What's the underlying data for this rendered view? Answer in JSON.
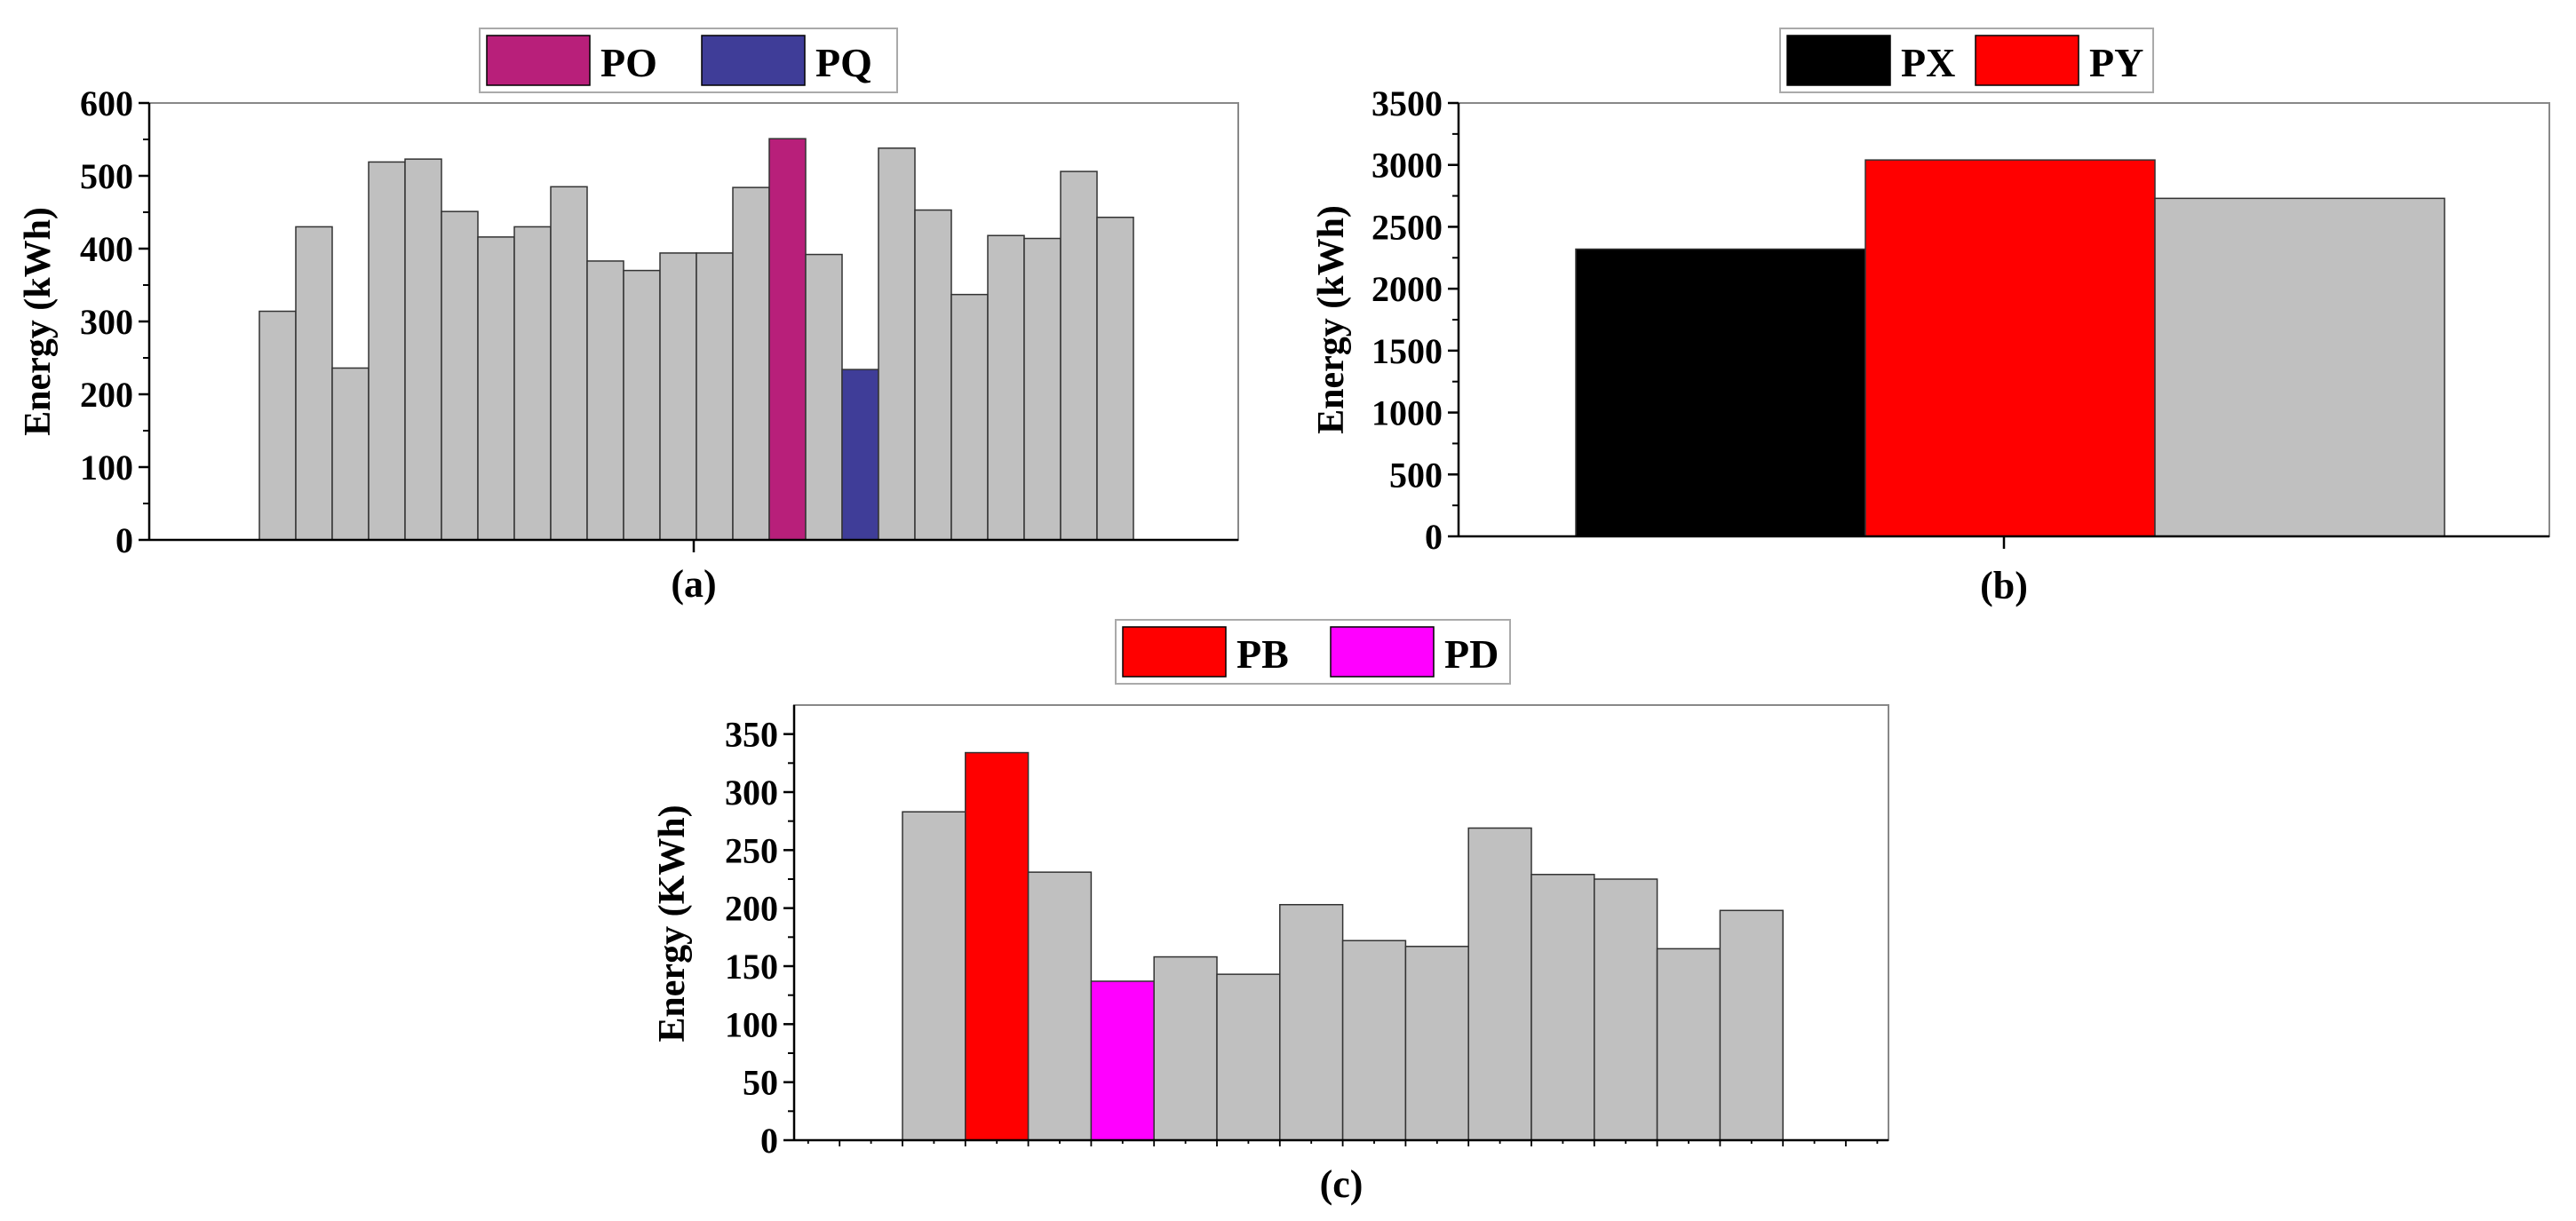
{
  "chart_data": [
    {
      "id": "a",
      "type": "bar",
      "caption": "(a)",
      "ylabel": "Energy (kWh)",
      "xlabel": "",
      "ylim": [
        0,
        600
      ],
      "yticks": [
        "0",
        "100",
        "200",
        "300",
        "400",
        "500",
        "600"
      ],
      "grid": false,
      "legend": [
        {
          "label": "PO",
          "color": "#b81f7a"
        },
        {
          "label": "PQ",
          "color": "#3f3d98"
        }
      ],
      "default_color": "#c0c0c0",
      "values": [
        314,
        430,
        236,
        519,
        523,
        451,
        416,
        430,
        485,
        383,
        370,
        394,
        394,
        484,
        551,
        392,
        234,
        538,
        453,
        337,
        418,
        414,
        506,
        443
      ],
      "highlights": {
        "14": "#b81f7a",
        "16": "#3f3d98"
      }
    },
    {
      "id": "b",
      "type": "bar",
      "caption": "(b)",
      "ylabel": "Energy (kWh)",
      "xlabel": "",
      "ylim": [
        0,
        3500
      ],
      "yticks": [
        "0",
        "500",
        "1000",
        "1500",
        "2000",
        "2500",
        "3000",
        "3500"
      ],
      "grid": false,
      "legend": [
        {
          "label": "PX",
          "color": "#000000"
        },
        {
          "label": "PY",
          "color": "#ff0000"
        }
      ],
      "default_color": "#c0c0c0",
      "values": [
        2320,
        3040,
        2730
      ],
      "highlights": {
        "0": "#000000",
        "1": "#ff0000"
      }
    },
    {
      "id": "c",
      "type": "bar",
      "caption": "(c)",
      "ylabel": "Energy (KWh)",
      "xlabel": "",
      "ylim": [
        0,
        375
      ],
      "yticks": [
        "0",
        "50",
        "100",
        "150",
        "200",
        "250",
        "300",
        "350"
      ],
      "grid": false,
      "legend": [
        {
          "label": "PB",
          "color": "#ff0000"
        },
        {
          "label": "PD",
          "color": "#ff00ff"
        }
      ],
      "default_color": "#c0c0c0",
      "values": [
        283,
        334,
        231,
        137,
        158,
        143,
        203,
        172,
        167,
        269,
        229,
        225,
        165,
        198
      ],
      "highlights": {
        "1": "#ff0000",
        "3": "#ff00ff"
      }
    }
  ]
}
